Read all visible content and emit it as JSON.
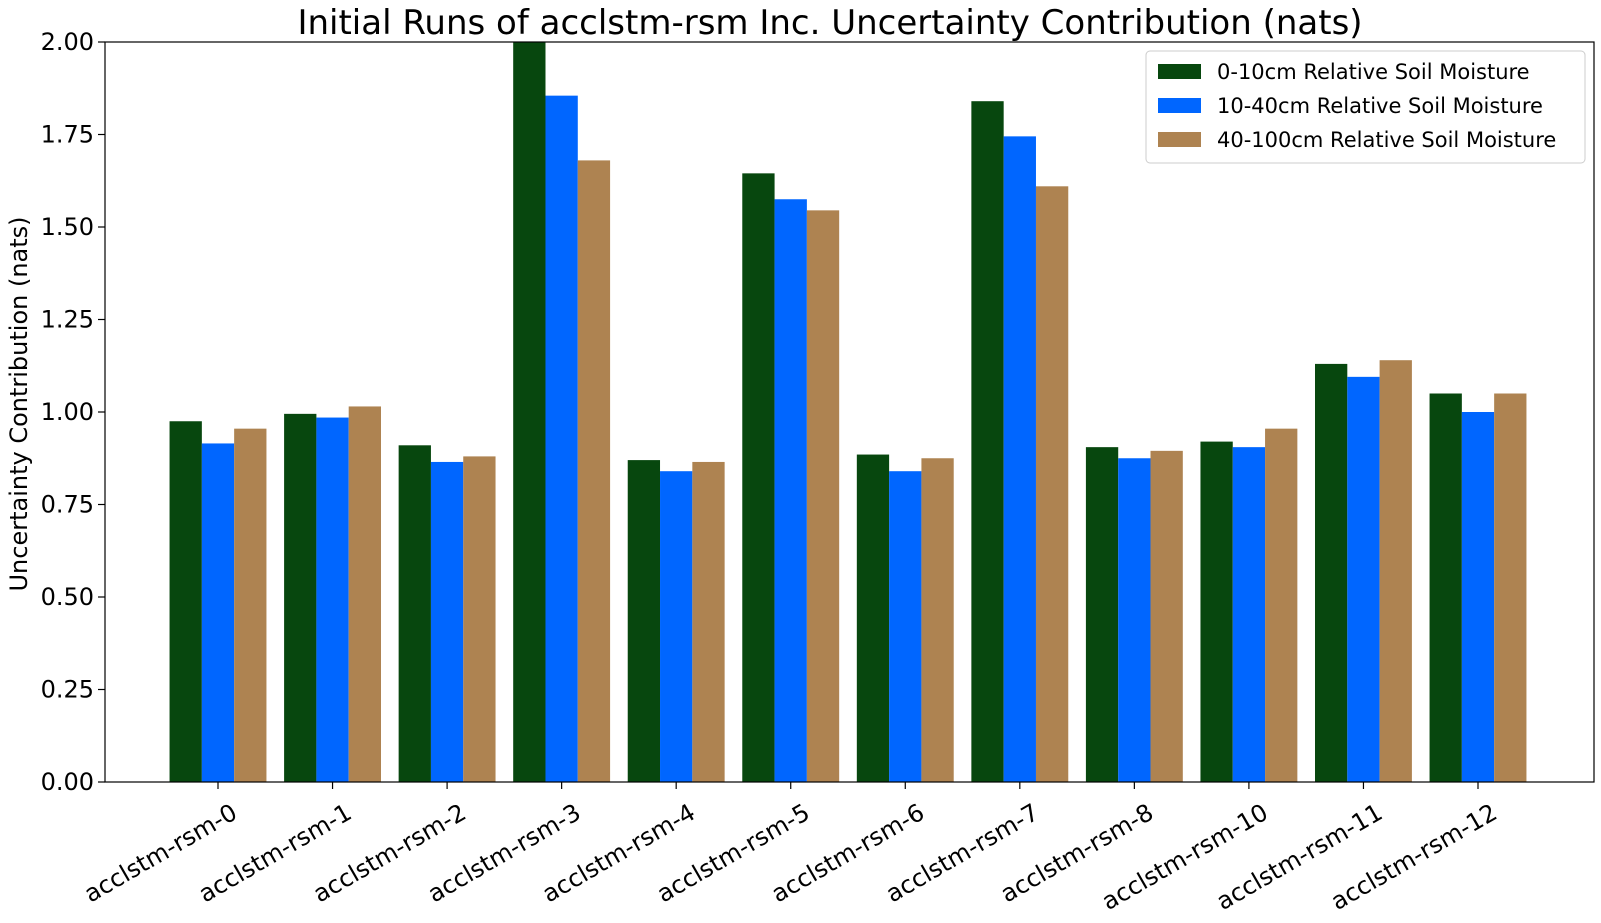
{
  "chart_data": {
    "type": "bar",
    "title": "Initial Runs of acclstm-rsm Inc. Uncertainty Contribution (nats)",
    "xlabel": "",
    "ylabel": "Uncertainty Contribution (nats)",
    "ylim": [
      0,
      2.0
    ],
    "yticks": [
      "0.00",
      "0.25",
      "0.50",
      "0.75",
      "1.00",
      "1.25",
      "1.50",
      "1.75",
      "2.00"
    ],
    "grid": false,
    "legend_position": "top-right",
    "categories": [
      "acclstm-rsm-0",
      "acclstm-rsm-1",
      "acclstm-rsm-2",
      "acclstm-rsm-3",
      "acclstm-rsm-4",
      "acclstm-rsm-5",
      "acclstm-rsm-6",
      "acclstm-rsm-7",
      "acclstm-rsm-8",
      "acclstm-rsm-10",
      "acclstm-rsm-11",
      "acclstm-rsm-12"
    ],
    "series": [
      {
        "name": "0-10cm Relative Soil Moisture",
        "color": "#07470e",
        "values": [
          0.975,
          0.995,
          0.91,
          2.0,
          0.87,
          1.645,
          0.885,
          1.84,
          0.905,
          0.92,
          1.13,
          1.05
        ]
      },
      {
        "name": "10-40cm Relative Soil Moisture",
        "color": "#0066ff",
        "values": [
          0.915,
          0.985,
          0.865,
          1.855,
          0.84,
          1.575,
          0.84,
          1.745,
          0.875,
          0.905,
          1.095,
          1.0
        ]
      },
      {
        "name": "40-100cm Relative Soil Moisture",
        "color": "#ae8351",
        "values": [
          0.955,
          1.015,
          0.88,
          1.68,
          0.865,
          1.545,
          0.875,
          1.61,
          0.895,
          0.955,
          1.14,
          1.05
        ]
      }
    ]
  }
}
